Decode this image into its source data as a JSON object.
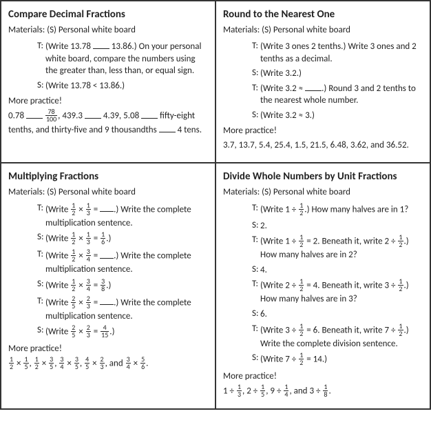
{
  "panels": {
    "top_left": {
      "title": "Compare Decimal Fractions",
      "materials": "Materials:   (S) Personal white board",
      "lines": [
        {
          "role": "T:",
          "parts": [
            "(Write 13.78 ",
            {
              "blank": true
            },
            " 13.86.)  On your personal white board, compare the numbers using the greater than, less than, or equal sign."
          ]
        },
        {
          "role": "S:",
          "parts": [
            "(Write 13.78 < 13.86.)"
          ]
        }
      ],
      "more": "More practice!",
      "practice": [
        "0.78 ",
        {
          "blank": true
        },
        " ",
        {
          "frac": [
            "78",
            "100"
          ]
        },
        ", 439.3 ",
        {
          "blank": true
        },
        " 4.39, 5.08 ",
        {
          "blank": true
        },
        " fifty-eight tenths, and thirty-five and 9 thousandths ",
        {
          "blank": true
        },
        " 4 tens."
      ]
    },
    "top_right": {
      "title": "Round to the Nearest One",
      "materials": "Materials:  (S) Personal white board",
      "lines": [
        {
          "role": "T:",
          "parts": [
            "(Write 3 ones 2 tenths.)  Write 3 ones and 2 tenths as a decimal."
          ]
        },
        {
          "role": "S:",
          "parts": [
            "(Write 3.2.)"
          ]
        },
        {
          "role": "T:",
          "parts": [
            "(Write 3.2 ≈ ",
            {
              "blank": true
            },
            ".)  Round 3 and 2 tenths to the nearest whole number."
          ]
        },
        {
          "role": "S:",
          "parts": [
            "(Write 3.2 ≈ 3.)"
          ]
        }
      ],
      "more": "More practice!",
      "practice": [
        "3.7, 13.7, 5.4, 25.4, 1.5, 21.5, 6.48, 3.62, and 36.52."
      ]
    },
    "bottom_left": {
      "title": "Multiplying Fractions",
      "materials": "Materials:   (S) Personal white board",
      "lines": [
        {
          "role": "T:",
          "parts": [
            "(Write ",
            {
              "frac": [
                "1",
                "2"
              ]
            },
            " × ",
            {
              "frac": [
                "1",
                "3"
              ]
            },
            " = ",
            {
              "blank": true,
              "short": true
            },
            ".)  Write the complete multiplication sentence."
          ]
        },
        {
          "role": "S:",
          "parts": [
            "(Write ",
            {
              "frac": [
                "1",
                "2"
              ]
            },
            " × ",
            {
              "frac": [
                "1",
                "3"
              ]
            },
            " = ",
            {
              "frac": [
                "1",
                "6"
              ]
            },
            ".)"
          ]
        },
        {
          "role": "T:",
          "parts": [
            "(Write ",
            {
              "frac": [
                "1",
                "2"
              ]
            },
            " × ",
            {
              "frac": [
                "3",
                "4"
              ]
            },
            " = ",
            {
              "blank": true,
              "short": true
            },
            ".)  Write the complete multiplication sentence."
          ]
        },
        {
          "role": "S:",
          "parts": [
            "(Write ",
            {
              "frac": [
                "1",
                "2"
              ]
            },
            " × ",
            {
              "frac": [
                "3",
                "4"
              ]
            },
            " = ",
            {
              "frac": [
                "3",
                "8"
              ]
            },
            ".)"
          ]
        },
        {
          "role": "T:",
          "parts": [
            "(Write ",
            {
              "frac": [
                "2",
                "5"
              ]
            },
            " × ",
            {
              "frac": [
                "2",
                "3"
              ]
            },
            " = ",
            {
              "blank": true,
              "short": true
            },
            ".)  Write the complete multiplication sentence."
          ]
        },
        {
          "role": "S:",
          "parts": [
            "(Write ",
            {
              "frac": [
                "2",
                "5"
              ]
            },
            " × ",
            {
              "frac": [
                "2",
                "3"
              ]
            },
            " = ",
            {
              "frac": [
                "4",
                "15"
              ]
            },
            ".)"
          ]
        }
      ],
      "more": "More practice!",
      "practice": [
        {
          "frac": [
            "1",
            "2"
          ]
        },
        " × ",
        {
          "frac": [
            "1",
            "5"
          ]
        },
        ", ",
        {
          "frac": [
            "1",
            "2"
          ]
        },
        " × ",
        {
          "frac": [
            "3",
            "5"
          ]
        },
        ", ",
        {
          "frac": [
            "3",
            "4"
          ]
        },
        " × ",
        {
          "frac": [
            "3",
            "5"
          ]
        },
        ", ",
        {
          "frac": [
            "4",
            "5"
          ]
        },
        " × ",
        {
          "frac": [
            "2",
            "3"
          ]
        },
        ", and ",
        {
          "frac": [
            "3",
            "4"
          ]
        },
        " × ",
        {
          "frac": [
            "5",
            "6"
          ]
        },
        "."
      ]
    },
    "bottom_right": {
      "title": "Divide Whole Numbers by Unit Fractions",
      "materials": "Materials:   (S) Personal white board",
      "lines": [
        {
          "role": "T:",
          "parts": [
            "(Write 1 ÷ ",
            {
              "frac": [
                "1",
                "2"
              ]
            },
            ".)  How many halves are in 1?"
          ]
        },
        {
          "role": "S:",
          "parts": [
            "2."
          ]
        },
        {
          "role": "T:",
          "parts": [
            "(Write 1 ÷ ",
            {
              "frac": [
                "1",
                "2"
              ]
            },
            " = 2.  Beneath it, write 2 ÷ ",
            {
              "frac": [
                "1",
                "2"
              ]
            },
            ".)  How many halves are in 2?"
          ]
        },
        {
          "role": "S:",
          "parts": [
            "4."
          ]
        },
        {
          "role": "T:",
          "parts": [
            "(Write 2 ÷ ",
            {
              "frac": [
                "1",
                "2"
              ]
            },
            " = 4.  Beneath it, write 3 ÷ ",
            {
              "frac": [
                "1",
                "2"
              ]
            },
            ".)  How many halves are in 3?"
          ]
        },
        {
          "role": "S:",
          "parts": [
            "6."
          ]
        },
        {
          "role": "T:",
          "parts": [
            "(Write 3 ÷ ",
            {
              "frac": [
                "1",
                "2"
              ]
            },
            " = 6.  Beneath it, write 7 ÷ ",
            {
              "frac": [
                "1",
                "2"
              ]
            },
            ".)  Write the complete division sentence."
          ]
        },
        {
          "role": "S:",
          "parts": [
            "(Write 7 ÷ ",
            {
              "frac": [
                "1",
                "2"
              ]
            },
            " = 14.)"
          ]
        }
      ],
      "more": "More practice!",
      "practice": [
        "1 ÷ ",
        {
          "frac": [
            "1",
            "3"
          ]
        },
        ", 2 ÷ ",
        {
          "frac": [
            "1",
            "5"
          ]
        },
        ", 9 ÷ ",
        {
          "frac": [
            "1",
            "4"
          ]
        },
        ", and 3 ÷ ",
        {
          "frac": [
            "1",
            "8"
          ]
        },
        "."
      ]
    }
  }
}
